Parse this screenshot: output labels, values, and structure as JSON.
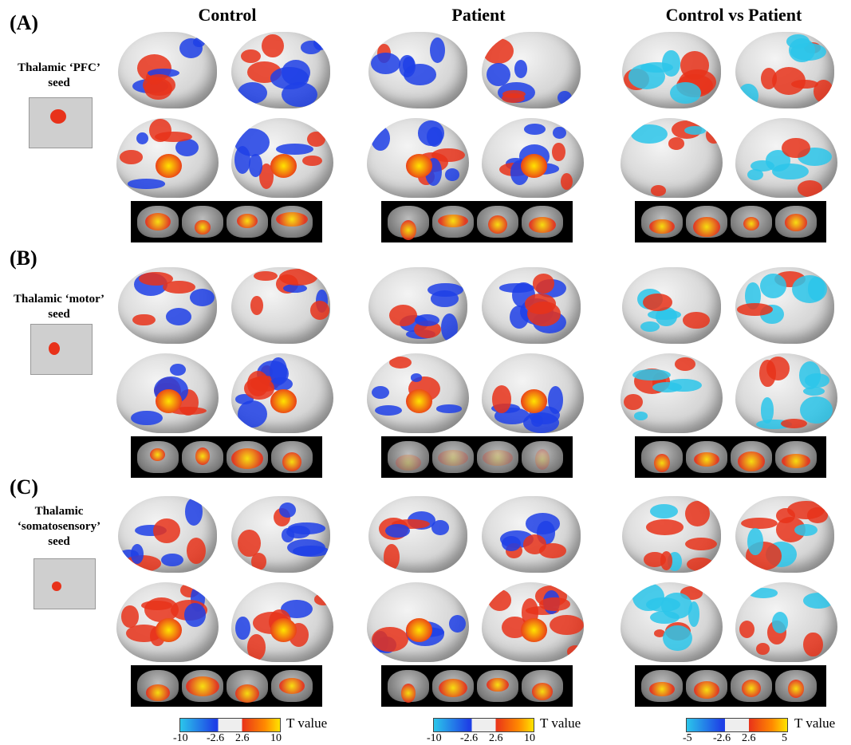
{
  "columns": {
    "control": "Control",
    "patient": "Patient",
    "contrast": "Control vs Patient"
  },
  "panels": [
    {
      "label": "(A)",
      "seed_line1": "Thalamic ‘PFC’",
      "seed_line2": "seed",
      "seed_line3": ""
    },
    {
      "label": "(B)",
      "seed_line1": "Thalamic ‘motor’",
      "seed_line2": "seed",
      "seed_line3": ""
    },
    {
      "label": "(C)",
      "seed_line1": "Thalamic",
      "seed_line2": "‘somatosensory’",
      "seed_line3": "seed"
    }
  ],
  "colorbars": [
    {
      "ticks": [
        "-10",
        "-2.6",
        "2.6",
        "10"
      ],
      "label": "T value"
    },
    {
      "ticks": [
        "-10",
        "-2.6",
        "2.6",
        "10"
      ],
      "label": "T value"
    },
    {
      "ticks": [
        "-5",
        "-2.6",
        "2.6",
        "5"
      ],
      "label": "T value"
    }
  ],
  "colors": {
    "positive": "#e8321a",
    "positive_high": "#ffe400",
    "negative": "#1e40e6",
    "negative_high": "#2bc6ea",
    "brain": "#d8d8d8"
  }
}
